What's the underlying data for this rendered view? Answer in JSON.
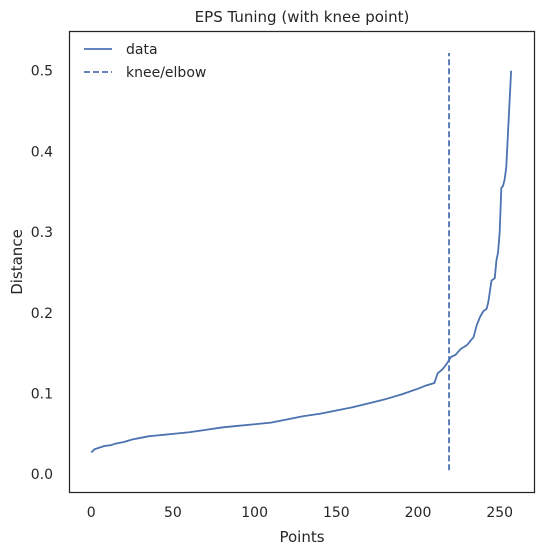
{
  "chart_data": {
    "type": "line",
    "title": "EPS Tuning (with knee point)",
    "xlabel": "Points",
    "ylabel": "Distance",
    "xlim": [
      -13,
      271
    ],
    "ylim": [
      -0.022,
      0.548
    ],
    "xticks": [
      0,
      50,
      100,
      150,
      200,
      250
    ],
    "yticks": [
      0.0,
      0.1,
      0.2,
      0.3,
      0.4,
      0.5
    ],
    "grid": false,
    "legend_position": "top-left",
    "colors": {
      "series": "#4c72b0",
      "axis": "#262626"
    },
    "series": [
      {
        "name": "data",
        "style": "solid",
        "points": [
          [
            0,
            0.027
          ],
          [
            2,
            0.031
          ],
          [
            5,
            0.033
          ],
          [
            8,
            0.035
          ],
          [
            12,
            0.036
          ],
          [
            15,
            0.038
          ],
          [
            20,
            0.04
          ],
          [
            25,
            0.043
          ],
          [
            30,
            0.045
          ],
          [
            35,
            0.047
          ],
          [
            40,
            0.048
          ],
          [
            45,
            0.049
          ],
          [
            50,
            0.05
          ],
          [
            60,
            0.052
          ],
          [
            70,
            0.055
          ],
          [
            80,
            0.058
          ],
          [
            90,
            0.06
          ],
          [
            100,
            0.062
          ],
          [
            110,
            0.064
          ],
          [
            120,
            0.068
          ],
          [
            130,
            0.072
          ],
          [
            140,
            0.075
          ],
          [
            150,
            0.079
          ],
          [
            160,
            0.083
          ],
          [
            170,
            0.088
          ],
          [
            180,
            0.093
          ],
          [
            190,
            0.099
          ],
          [
            200,
            0.106
          ],
          [
            205,
            0.11
          ],
          [
            210,
            0.113
          ],
          [
            212,
            0.125
          ],
          [
            215,
            0.13
          ],
          [
            218,
            0.138
          ],
          [
            220,
            0.145
          ],
          [
            223,
            0.148
          ],
          [
            226,
            0.155
          ],
          [
            230,
            0.16
          ],
          [
            234,
            0.17
          ],
          [
            236,
            0.185
          ],
          [
            238,
            0.195
          ],
          [
            240,
            0.202
          ],
          [
            242,
            0.205
          ],
          [
            243,
            0.213
          ],
          [
            245,
            0.24
          ],
          [
            247,
            0.243
          ],
          [
            248,
            0.265
          ],
          [
            249,
            0.275
          ],
          [
            250,
            0.3
          ],
          [
            251,
            0.355
          ],
          [
            252,
            0.357
          ],
          [
            253,
            0.365
          ],
          [
            254,
            0.38
          ],
          [
            255,
            0.42
          ],
          [
            256,
            0.46
          ],
          [
            257,
            0.5
          ]
        ]
      },
      {
        "name": "knee/elbow",
        "style": "dashed",
        "x": 219,
        "y_range": [
          0.005,
          0.522
        ]
      }
    ]
  }
}
